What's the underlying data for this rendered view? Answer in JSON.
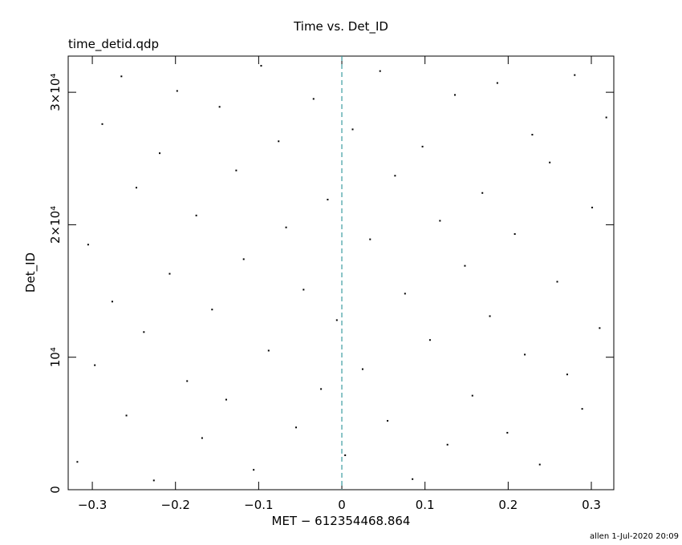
{
  "chart_data": {
    "type": "scatter",
    "title": "Time vs. Det_ID",
    "subtitle": "time_detid.qdp",
    "x_label": "MET − 612354468.864",
    "y_label": "Det_ID",
    "footer": "allen   1-Jul-2020 20:09",
    "xlim": [
      -0.329,
      0.327
    ],
    "ylim": [
      0,
      32730
    ],
    "xticks": [
      {
        "value": -0.3,
        "label": "−0.3"
      },
      {
        "value": -0.2,
        "label": "−0.2"
      },
      {
        "value": -0.1,
        "label": "−0.1"
      },
      0,
      0.1,
      0.2,
      0.3
    ],
    "yticks": [
      0,
      {
        "value": 10000,
        "label": "10⁴"
      },
      {
        "value": 20000,
        "label": "2×10⁴"
      },
      {
        "value": 30000,
        "label": "3×10⁴"
      }
    ],
    "vline": {
      "x": 0,
      "color": "#3a9ca0"
    },
    "series": [
      {
        "color": "#000000",
        "x": [
          -0.318,
          -0.305,
          -0.297,
          -0.288,
          -0.276,
          -0.265,
          -0.259,
          -0.247,
          -0.238,
          -0.226,
          -0.219,
          -0.207,
          -0.198,
          -0.186,
          -0.175,
          -0.168,
          -0.156,
          -0.147,
          -0.139,
          -0.127,
          -0.118,
          -0.106,
          -0.097,
          -0.088,
          -0.076,
          -0.067,
          -0.055,
          -0.046,
          -0.034,
          -0.025,
          -0.017,
          -0.006,
          0.004,
          0.013,
          0.025,
          0.034,
          0.046,
          0.055,
          0.064,
          0.076,
          0.085,
          0.097,
          0.106,
          0.118,
          0.127,
          0.136,
          0.148,
          0.157,
          0.169,
          0.178,
          0.187,
          0.199,
          0.208,
          0.22,
          0.229,
          0.238,
          0.25,
          0.259,
          0.271,
          0.28,
          0.289,
          0.301,
          0.31,
          0.318
        ],
        "values": [
          2100,
          18500,
          9400,
          27600,
          14200,
          31200,
          5600,
          22800,
          11900,
          700,
          25400,
          16300,
          30100,
          8200,
          20700,
          3900,
          13600,
          28900,
          6800,
          24100,
          17400,
          1500,
          32000,
          10500,
          26300,
          19800,
          4700,
          15100,
          29500,
          7600,
          21900,
          12800,
          2600,
          27200,
          9100,
          18900,
          31600,
          5200,
          23700,
          14800,
          800,
          25900,
          11300,
          20300,
          3400,
          29800,
          16900,
          7100,
          22400,
          13100,
          30700,
          4300,
          19300,
          10200,
          26800,
          1900,
          24700,
          15700,
          8700,
          31300,
          6100,
          21300,
          12200,
          28100
        ]
      }
    ]
  }
}
